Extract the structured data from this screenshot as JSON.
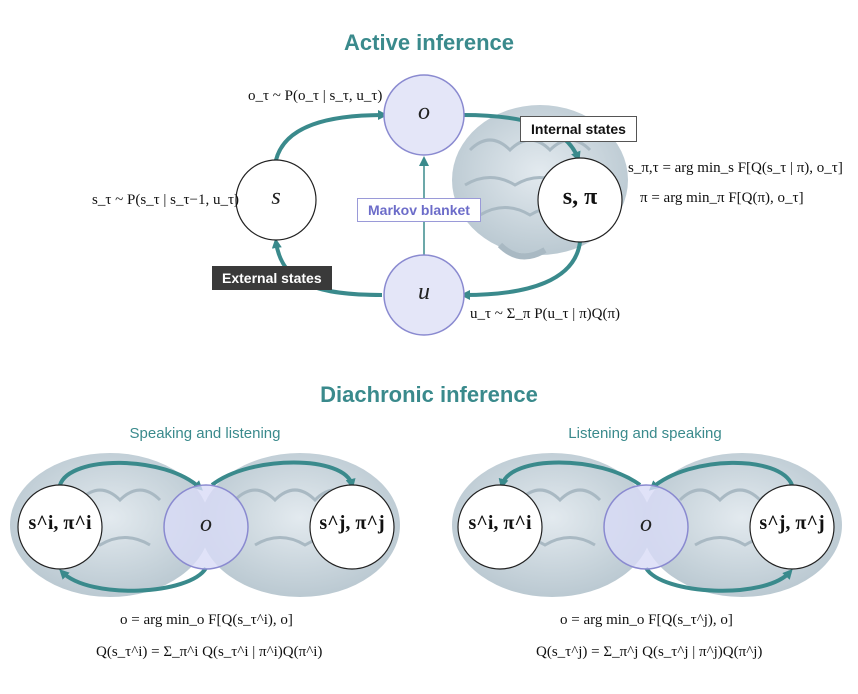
{
  "top": {
    "title": "Active inference",
    "internal_label": "Internal states",
    "external_label": "External states",
    "markov_label": "Markov blanket",
    "node_o": "o",
    "node_s": "s",
    "node_u": "u",
    "node_spi": "s, π",
    "eq_obs": "o_τ ~ P(o_τ | s_τ, u_τ)",
    "eq_state": "s_τ ~ P(s_τ | s_τ−1, u_τ)",
    "eq_internal_1": "s_π,τ = arg min_s F[Q(s_τ | π), o_τ]",
    "eq_internal_2": "π = arg min_π F[Q(π), o_τ]",
    "eq_action": "u_τ ~ Σ_π P(u_τ | π)Q(π)"
  },
  "bottom": {
    "title": "Diachronic inference",
    "left": {
      "subtitle": "Speaking and listening",
      "node_left": "s^i, π^i",
      "node_mid": "o",
      "node_right": "s^j, π^j",
      "eq1": "o = arg min_o F[Q(s_τ^i), o]",
      "eq2": "Q(s_τ^i) = Σ_π^i Q(s_τ^i | π^i)Q(π^i)"
    },
    "right": {
      "subtitle": "Listening and speaking",
      "node_left": "s^i, π^i",
      "node_mid": "o",
      "node_right": "s^j, π^j",
      "eq1": "o = arg min_o F[Q(s_τ^j), o]",
      "eq2": "Q(s_τ^j) = Σ_π^j Q(s_τ^j | π^j)Q(π^j)"
    }
  },
  "colors": {
    "teal": "#3a8a8c",
    "blanket_fill": "#e4e6f8",
    "blanket_stroke": "#8a8ad0",
    "brain": "#c7d3db"
  }
}
